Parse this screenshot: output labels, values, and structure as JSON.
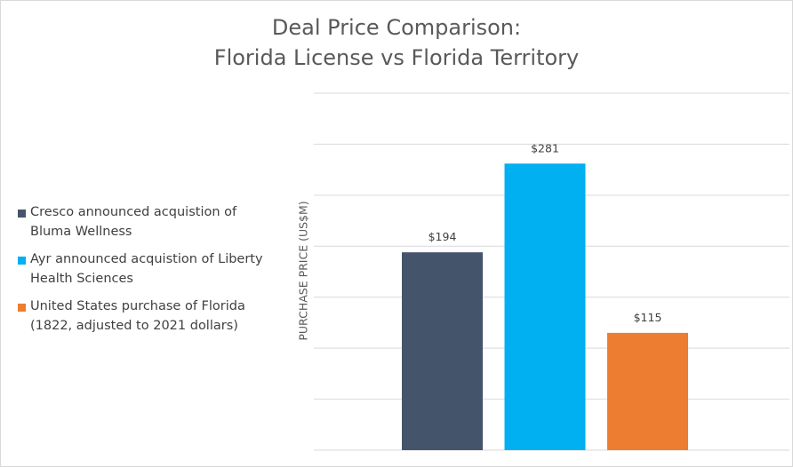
{
  "chart_data": {
    "type": "bar",
    "title": [
      "Deal Price Comparison:",
      "Florida License vs Florida Territory"
    ],
    "ylabel": "PURCHASE PRICE (US$M)",
    "xlabel": "",
    "ylim": [
      0,
      350
    ],
    "grid": true,
    "legend_position": "left",
    "categories": [
      "Cresco announced acquistion of Bluma Wellness",
      "Ayr announced acquistion of Liberty Health Sciences",
      "United States purchase of Florida (1822, adjusted to 2021 dollars)"
    ],
    "values": [
      194,
      281,
      115
    ],
    "data_labels": [
      "$194",
      "$281",
      "$115"
    ],
    "colors": [
      "#44546a",
      "#00b0f0",
      "#ed7d31"
    ]
  },
  "legend": {
    "items": [
      {
        "line1": "Cresco announced acquistion of",
        "line2": "Bluma Wellness",
        "color": "#44546a"
      },
      {
        "line1": "Ayr announced acquistion of Liberty",
        "line2": "Health Sciences",
        "color": "#00b0f0"
      },
      {
        "line1": "United States purchase of Florida",
        "line2": "(1822, adjusted to 2021 dollars)",
        "color": "#ed7d31"
      }
    ]
  },
  "colors": {
    "gridline": "#d9d9d9",
    "label_text": "#404040",
    "title_text": "#595959"
  }
}
